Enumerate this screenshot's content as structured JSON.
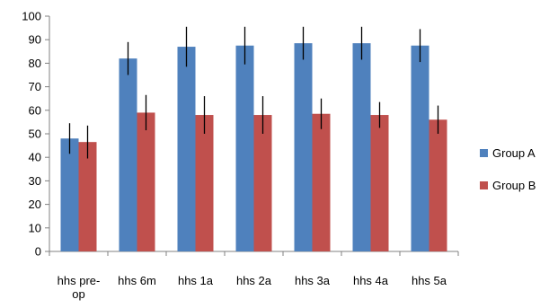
{
  "chart_data": {
    "type": "bar",
    "categories": [
      [
        "hhs pre-",
        "op"
      ],
      [
        "hhs 6m"
      ],
      [
        "hhs 1a"
      ],
      [
        "hhs 2a"
      ],
      [
        "hhs 3a"
      ],
      [
        "hhs 4a"
      ],
      [
        "hhs 5a"
      ]
    ],
    "ylim": [
      0,
      100
    ],
    "yticks": [
      0,
      10,
      20,
      30,
      40,
      50,
      60,
      70,
      80,
      90,
      100
    ],
    "grid": false,
    "legend_position": "right",
    "series": [
      {
        "name": "Group A",
        "color": "#4F81BD",
        "values": [
          48,
          82,
          87,
          87.5,
          88.5,
          88.5,
          87.5
        ],
        "error": [
          6.5,
          7,
          8.5,
          8,
          7,
          7,
          7
        ]
      },
      {
        "name": "Group B",
        "color": "#C0504D",
        "values": [
          46.5,
          59,
          58,
          58,
          58.5,
          58,
          56
        ],
        "error": [
          7,
          7.5,
          8,
          8,
          6.5,
          5.5,
          6
        ]
      }
    ]
  }
}
